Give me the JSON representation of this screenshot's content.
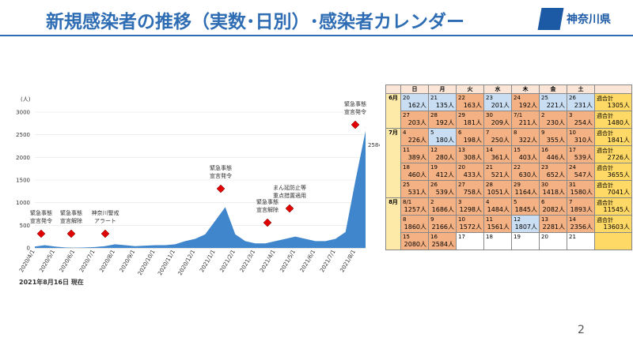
{
  "header": {
    "title": "新規感染者の推移（実数･日別）･感染者カレンダー",
    "logo": "神奈川県"
  },
  "chart_data": {
    "type": "area",
    "y_label": "(人)",
    "color": "#3f86cc",
    "categories": [
      "2020/4/1",
      null,
      "2020/5/1",
      null,
      "2020/6/1",
      null,
      "2020/7/1",
      null,
      "2020/8/1",
      null,
      "2020/9/1",
      null,
      "2020/10/1",
      null,
      "2020/11/1",
      null,
      "2020/12/1",
      null,
      "2021/1/1",
      null,
      "2021/2/1",
      null,
      "2021/3/1",
      null,
      "2021/4/1",
      null,
      "2021/5/1",
      null,
      "2021/6/1",
      null,
      "2021/7/1",
      null,
      "2021/8/1",
      null
    ],
    "values": [
      30,
      60,
      30,
      10,
      5,
      10,
      20,
      40,
      80,
      60,
      40,
      50,
      60,
      60,
      80,
      150,
      200,
      300,
      600,
      900,
      300,
      150,
      100,
      100,
      150,
      200,
      250,
      200,
      150,
      150,
      200,
      350,
      1500,
      2584
    ],
    "ylim": [
      0,
      3000
    ],
    "yticks": [
      0,
      500,
      1000,
      1500,
      2000,
      2500,
      3000
    ],
    "grid": true,
    "annotations": [
      {
        "lines": [
          "緊急事態",
          "宣言発令"
        ]
      },
      {
        "lines": [
          "緊急事態",
          "宣言解除"
        ]
      },
      {
        "lines": [
          "神奈川警戒",
          "アラート"
        ]
      },
      {
        "lines": [
          "緊急事態",
          "宣言発令"
        ]
      },
      {
        "lines": [
          "緊急事態",
          "宣言解除"
        ]
      },
      {
        "lines": [
          "まん延防止等",
          "重点措置適用"
        ]
      },
      {
        "lines": [
          "緊急事態",
          "宣言発令"
        ]
      }
    ],
    "note": "2021年8月16日 現在"
  },
  "calendar": {
    "weekdays": [
      "日",
      "月",
      "火",
      "水",
      "木",
      "金",
      "土"
    ],
    "total_label": "週合計",
    "months": [
      {
        "label": "6月",
        "weeks": [
          {
            "days": [
              {
                "day": 20,
                "count": "162人",
                "color": "#c9def2"
              },
              {
                "day": 21,
                "count": "135人",
                "color": "#c9def2"
              },
              {
                "day": 22,
                "count": "163人",
                "color": "#f4b183"
              },
              {
                "day": 23,
                "count": "201人",
                "color": "#c9def2"
              },
              {
                "day": 24,
                "count": "192人",
                "color": "#f4b183"
              },
              {
                "day": 25,
                "count": "221人",
                "color": "#c9def2"
              },
              {
                "day": 26,
                "count": "231人",
                "color": "#c9def2"
              }
            ],
            "total": "1305人"
          },
          {
            "days": [
              {
                "day": 27,
                "count": "203人",
                "color": "#f4b183"
              },
              {
                "day": 28,
                "count": "192人",
                "color": "#f4b183"
              },
              {
                "day": 29,
                "count": "181人",
                "color": "#f4b183"
              },
              {
                "day": 30,
                "count": "209人",
                "color": "#f4b183"
              },
              {
                "day": "7/1",
                "count": "211人",
                "color": "#f4b183"
              },
              {
                "day": 2,
                "count": "230人",
                "color": "#f4b183"
              },
              {
                "day": 3,
                "count": "254人",
                "color": "#f4b183"
              }
            ],
            "total": "1480人"
          }
        ]
      },
      {
        "label": "7月",
        "weeks": [
          {
            "days": [
              {
                "day": 4,
                "count": "226人",
                "color": "#f4b183"
              },
              {
                "day": 5,
                "count": "180人",
                "color": "#c9def2"
              },
              {
                "day": 6,
                "count": "198人",
                "color": "#f4b183"
              },
              {
                "day": 7,
                "count": "250人",
                "color": "#f4b183"
              },
              {
                "day": 8,
                "count": "322人",
                "color": "#f4b183"
              },
              {
                "day": 9,
                "count": "355人",
                "color": "#f4b183"
              },
              {
                "day": 10,
                "count": "310人",
                "color": "#f4b183"
              }
            ],
            "total": "1841人"
          },
          {
            "days": [
              {
                "day": 11,
                "count": "389人",
                "color": "#f4b183"
              },
              {
                "day": 12,
                "count": "280人",
                "color": "#f4b183"
              },
              {
                "day": 13,
                "count": "308人",
                "color": "#f4b183"
              },
              {
                "day": 14,
                "count": "361人",
                "color": "#f4b183"
              },
              {
                "day": 15,
                "count": "403人",
                "color": "#f4b183"
              },
              {
                "day": 16,
                "count": "446人",
                "color": "#f4b183"
              },
              {
                "day": 17,
                "count": "539人",
                "color": "#f4b183"
              }
            ],
            "total": "2726人"
          },
          {
            "days": [
              {
                "day": 18,
                "count": "460人",
                "color": "#f4b183"
              },
              {
                "day": 19,
                "count": "412人",
                "color": "#f4b183"
              },
              {
                "day": 20,
                "count": "433人",
                "color": "#f4b183"
              },
              {
                "day": 21,
                "count": "521人",
                "color": "#f4b183"
              },
              {
                "day": 22,
                "count": "630人",
                "color": "#f4b183"
              },
              {
                "day": 23,
                "count": "652人",
                "color": "#f4b183"
              },
              {
                "day": 24,
                "count": "547人",
                "color": "#f4b183"
              }
            ],
            "total": "3655人"
          },
          {
            "days": [
              {
                "day": 25,
                "count": "531人",
                "color": "#f4b183"
              },
              {
                "day": 26,
                "count": "539人",
                "color": "#f4b183"
              },
              {
                "day": 27,
                "count": "758人",
                "color": "#f4b183"
              },
              {
                "day": 28,
                "count": "1051人",
                "color": "#f4b183"
              },
              {
                "day": 29,
                "count": "1164人",
                "color": "#f4b183"
              },
              {
                "day": 30,
                "count": "1418人",
                "color": "#f4b183"
              },
              {
                "day": 31,
                "count": "1580人",
                "color": "#f4b183"
              }
            ],
            "total": "7041人"
          }
        ]
      },
      {
        "label": "8月",
        "weeks": [
          {
            "days": [
              {
                "day": "8/1",
                "count": "1257人",
                "color": "#f4b183"
              },
              {
                "day": 2,
                "count": "1686人",
                "color": "#f4b183"
              },
              {
                "day": 3,
                "count": "1298人",
                "color": "#f4b183"
              },
              {
                "day": 4,
                "count": "1484人",
                "color": "#f4b183"
              },
              {
                "day": 5,
                "count": "1845人",
                "color": "#f4b183"
              },
              {
                "day": 6,
                "count": "2082人",
                "color": "#f4b183"
              },
              {
                "day": 7,
                "count": "1893人",
                "color": "#f4b183"
              }
            ],
            "total": "11545人"
          },
          {
            "days": [
              {
                "day": 8,
                "count": "1860人",
                "color": "#f4b183"
              },
              {
                "day": 9,
                "count": "2166人",
                "color": "#f4b183"
              },
              {
                "day": 10,
                "count": "1572人",
                "color": "#f4b183"
              },
              {
                "day": 11,
                "count": "1561人",
                "color": "#f4b183"
              },
              {
                "day": 12,
                "count": "1807人",
                "color": "#c9def2"
              },
              {
                "day": 13,
                "count": "2281人",
                "color": "#f4b183"
              },
              {
                "day": 14,
                "count": "2356人",
                "color": "#f4b183"
              }
            ],
            "total": "13603人"
          },
          {
            "days": [
              {
                "day": 15,
                "count": "2080人",
                "color": "#f4b183"
              },
              {
                "day": 16,
                "count": "2584人",
                "color": "#f4b183"
              },
              {
                "day": 17,
                "color": "#ffffff"
              },
              {
                "day": 18,
                "color": "#ffffff"
              },
              {
                "day": 19,
                "color": "#ffffff"
              },
              {
                "day": 20,
                "color": "#ffffff"
              },
              {
                "day": 21,
                "color": "#ffffff"
              }
            ]
          }
        ]
      }
    ]
  },
  "page_number": "2"
}
